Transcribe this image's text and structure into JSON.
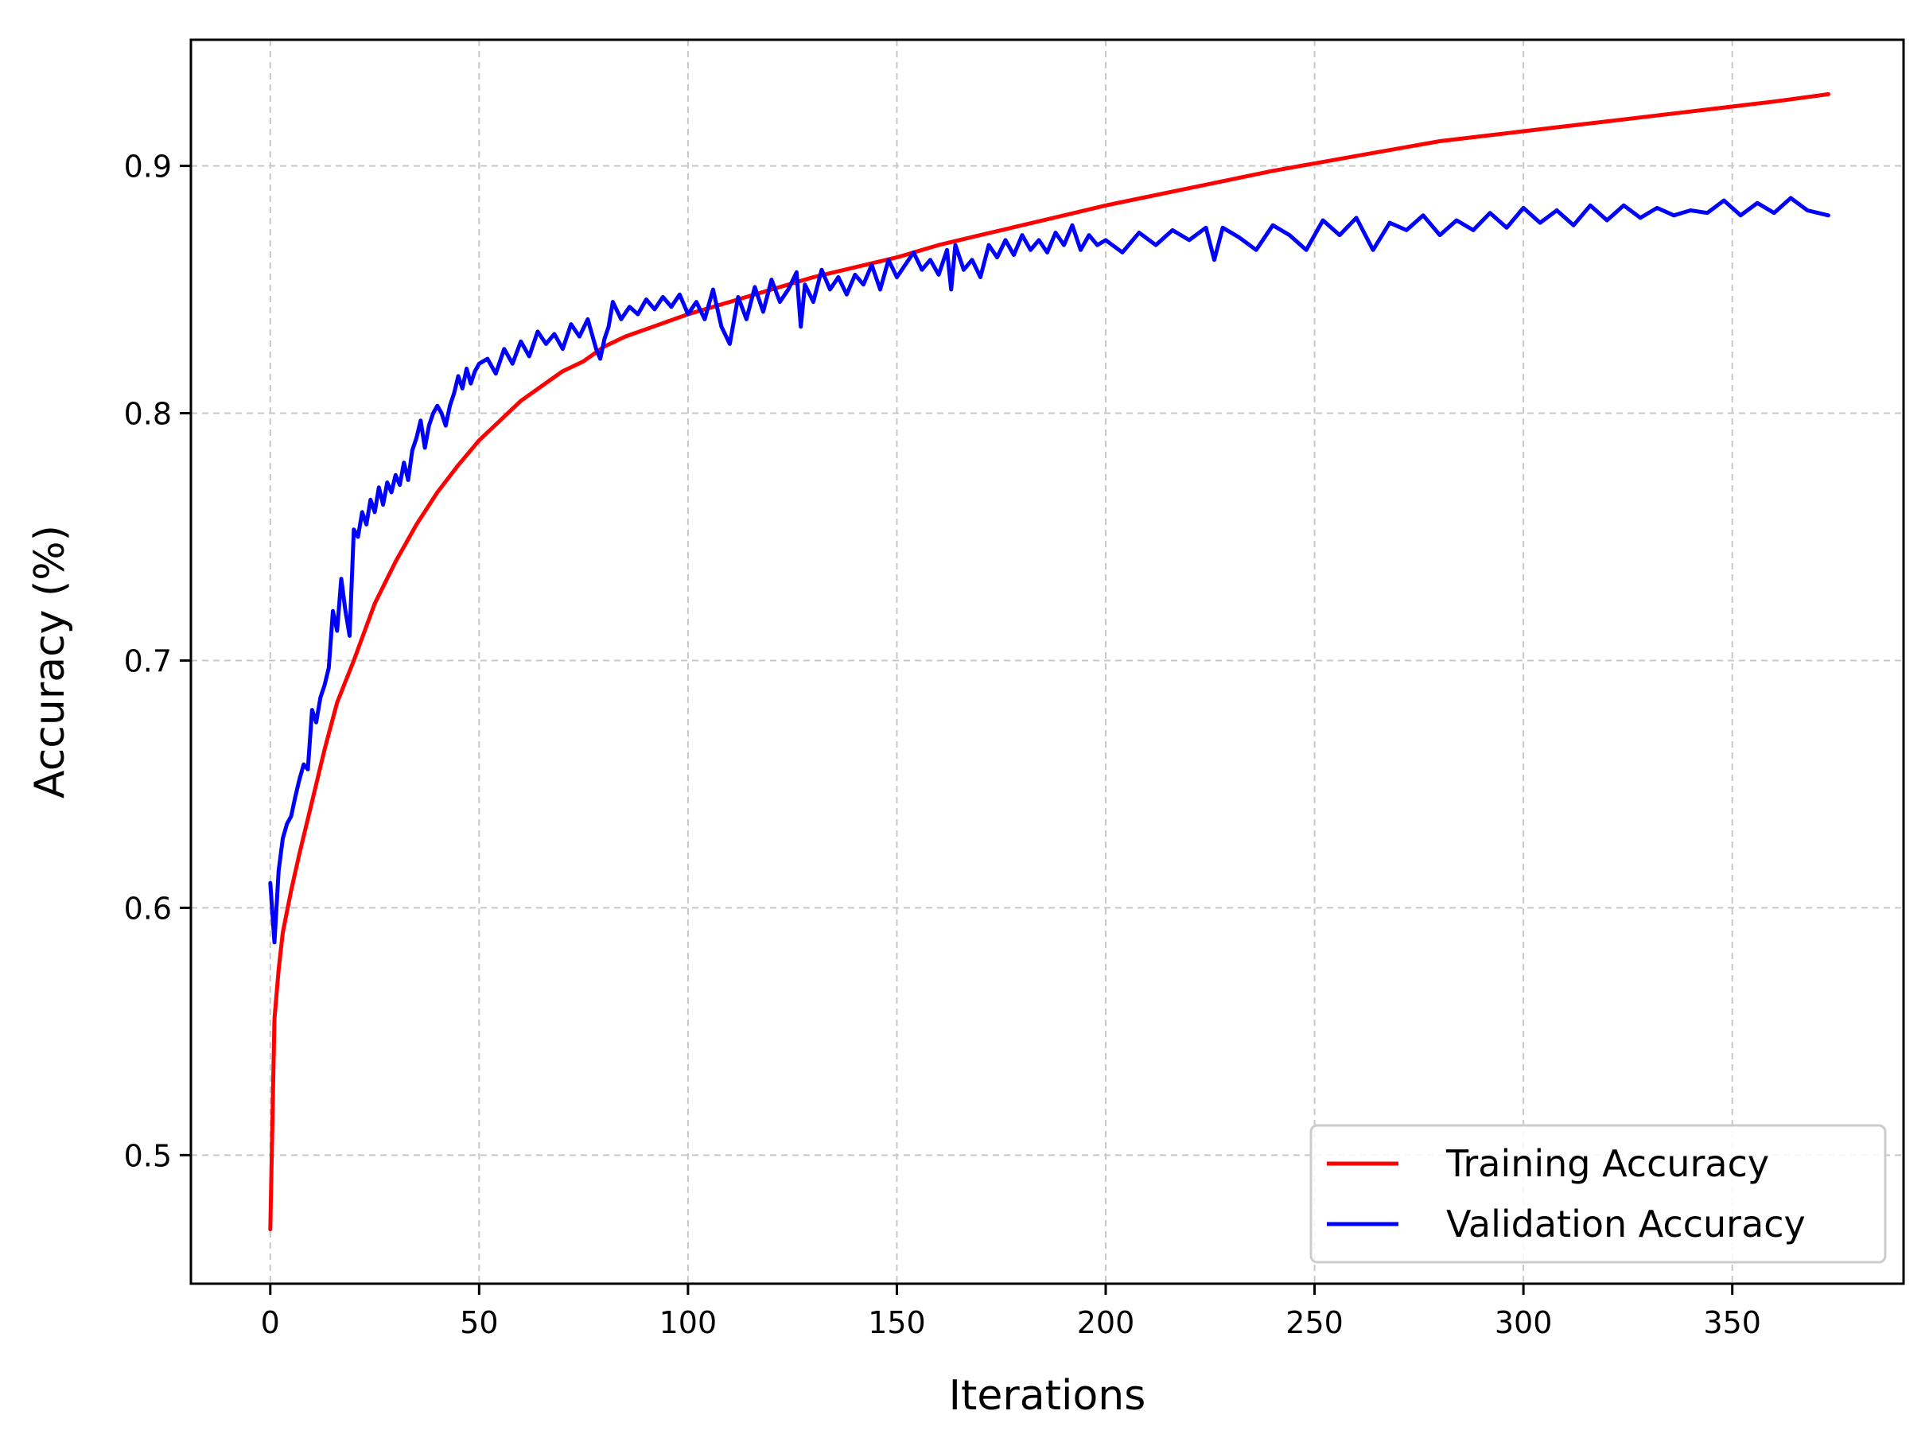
{
  "chart_data": {
    "type": "line",
    "title": "",
    "xlabel": "Iterations",
    "ylabel": "Accuracy (%)",
    "xlim": [
      -19,
      391
    ],
    "ylim": [
      0.448,
      0.951
    ],
    "x_ticks": [
      0,
      50,
      100,
      150,
      200,
      250,
      300,
      350
    ],
    "x_tick_labels": [
      "0",
      "50",
      "100",
      "150",
      "200",
      "250",
      "300",
      "350"
    ],
    "y_ticks": [
      0.5,
      0.6,
      0.7,
      0.8,
      0.9
    ],
    "y_tick_labels": [
      "0.5",
      "0.6",
      "0.7",
      "0.8",
      "0.9"
    ],
    "grid": true,
    "legend_position": "lower-right",
    "series": [
      {
        "name": "Training Accuracy",
        "color": "#ff0000",
        "x": [
          0,
          1,
          2,
          3,
          5,
          7,
          10,
          13,
          16,
          20,
          25,
          30,
          35,
          40,
          45,
          50,
          55,
          60,
          65,
          70,
          75,
          80,
          85,
          90,
          100,
          110,
          120,
          130,
          140,
          150,
          160,
          170,
          180,
          190,
          200,
          220,
          240,
          260,
          280,
          300,
          320,
          340,
          360,
          373
        ],
        "y": [
          0.47,
          0.555,
          0.575,
          0.59,
          0.607,
          0.622,
          0.643,
          0.664,
          0.683,
          0.7,
          0.723,
          0.74,
          0.755,
          0.768,
          0.779,
          0.789,
          0.797,
          0.805,
          0.811,
          0.817,
          0.821,
          0.827,
          0.831,
          0.834,
          0.84,
          0.845,
          0.85,
          0.855,
          0.859,
          0.863,
          0.868,
          0.872,
          0.876,
          0.88,
          0.884,
          0.891,
          0.898,
          0.904,
          0.91,
          0.914,
          0.918,
          0.922,
          0.926,
          0.929
        ]
      },
      {
        "name": "Validation Accuracy",
        "color": "#0000ff",
        "x": [
          0,
          1,
          2,
          3,
          4,
          5,
          6,
          7,
          8,
          9,
          10,
          11,
          12,
          13,
          14,
          15,
          16,
          17,
          18,
          19,
          20,
          21,
          22,
          23,
          24,
          25,
          26,
          27,
          28,
          29,
          30,
          31,
          32,
          33,
          34,
          35,
          36,
          37,
          38,
          39,
          40,
          41,
          42,
          43,
          44,
          45,
          46,
          47,
          48,
          49,
          50,
          52,
          54,
          56,
          58,
          60,
          62,
          64,
          66,
          68,
          70,
          72,
          74,
          76,
          78,
          79,
          80,
          81,
          82,
          84,
          86,
          88,
          90,
          92,
          94,
          96,
          98,
          100,
          102,
          104,
          106,
          108,
          110,
          112,
          114,
          116,
          118,
          120,
          122,
          124,
          126,
          127,
          128,
          130,
          132,
          134,
          136,
          138,
          140,
          142,
          144,
          146,
          148,
          150,
          152,
          154,
          156,
          158,
          160,
          162,
          163,
          164,
          166,
          168,
          170,
          172,
          174,
          176,
          178,
          180,
          182,
          184,
          186,
          188,
          190,
          192,
          194,
          196,
          198,
          200,
          204,
          208,
          212,
          216,
          220,
          224,
          226,
          228,
          232,
          236,
          240,
          244,
          248,
          252,
          256,
          260,
          264,
          268,
          272,
          276,
          280,
          284,
          288,
          292,
          296,
          300,
          304,
          308,
          312,
          316,
          320,
          324,
          328,
          332,
          336,
          340,
          344,
          348,
          352,
          356,
          360,
          364,
          368,
          373
        ],
        "y": [
          0.61,
          0.586,
          0.615,
          0.628,
          0.634,
          0.637,
          0.645,
          0.652,
          0.658,
          0.656,
          0.68,
          0.675,
          0.685,
          0.69,
          0.697,
          0.72,
          0.712,
          0.733,
          0.72,
          0.71,
          0.753,
          0.75,
          0.76,
          0.755,
          0.765,
          0.76,
          0.77,
          0.763,
          0.772,
          0.768,
          0.775,
          0.771,
          0.78,
          0.773,
          0.785,
          0.79,
          0.797,
          0.786,
          0.795,
          0.8,
          0.803,
          0.8,
          0.795,
          0.803,
          0.808,
          0.815,
          0.81,
          0.818,
          0.812,
          0.817,
          0.82,
          0.822,
          0.816,
          0.826,
          0.82,
          0.829,
          0.823,
          0.833,
          0.828,
          0.832,
          0.826,
          0.836,
          0.831,
          0.838,
          0.826,
          0.822,
          0.83,
          0.835,
          0.845,
          0.838,
          0.843,
          0.84,
          0.846,
          0.842,
          0.847,
          0.843,
          0.848,
          0.84,
          0.845,
          0.838,
          0.85,
          0.835,
          0.828,
          0.847,
          0.838,
          0.851,
          0.841,
          0.854,
          0.845,
          0.85,
          0.857,
          0.835,
          0.852,
          0.845,
          0.858,
          0.85,
          0.855,
          0.848,
          0.856,
          0.852,
          0.86,
          0.85,
          0.862,
          0.855,
          0.86,
          0.865,
          0.858,
          0.862,
          0.856,
          0.866,
          0.85,
          0.868,
          0.858,
          0.862,
          0.855,
          0.868,
          0.863,
          0.87,
          0.864,
          0.872,
          0.866,
          0.87,
          0.865,
          0.873,
          0.868,
          0.876,
          0.866,
          0.872,
          0.868,
          0.87,
          0.865,
          0.873,
          0.868,
          0.874,
          0.87,
          0.875,
          0.862,
          0.875,
          0.871,
          0.866,
          0.876,
          0.872,
          0.866,
          0.878,
          0.872,
          0.879,
          0.866,
          0.877,
          0.874,
          0.88,
          0.872,
          0.878,
          0.874,
          0.881,
          0.875,
          0.883,
          0.877,
          0.882,
          0.876,
          0.884,
          0.878,
          0.884,
          0.879,
          0.883,
          0.88,
          0.882,
          0.881,
          0.886,
          0.88,
          0.885,
          0.881,
          0.887,
          0.882,
          0.88
        ]
      }
    ]
  }
}
